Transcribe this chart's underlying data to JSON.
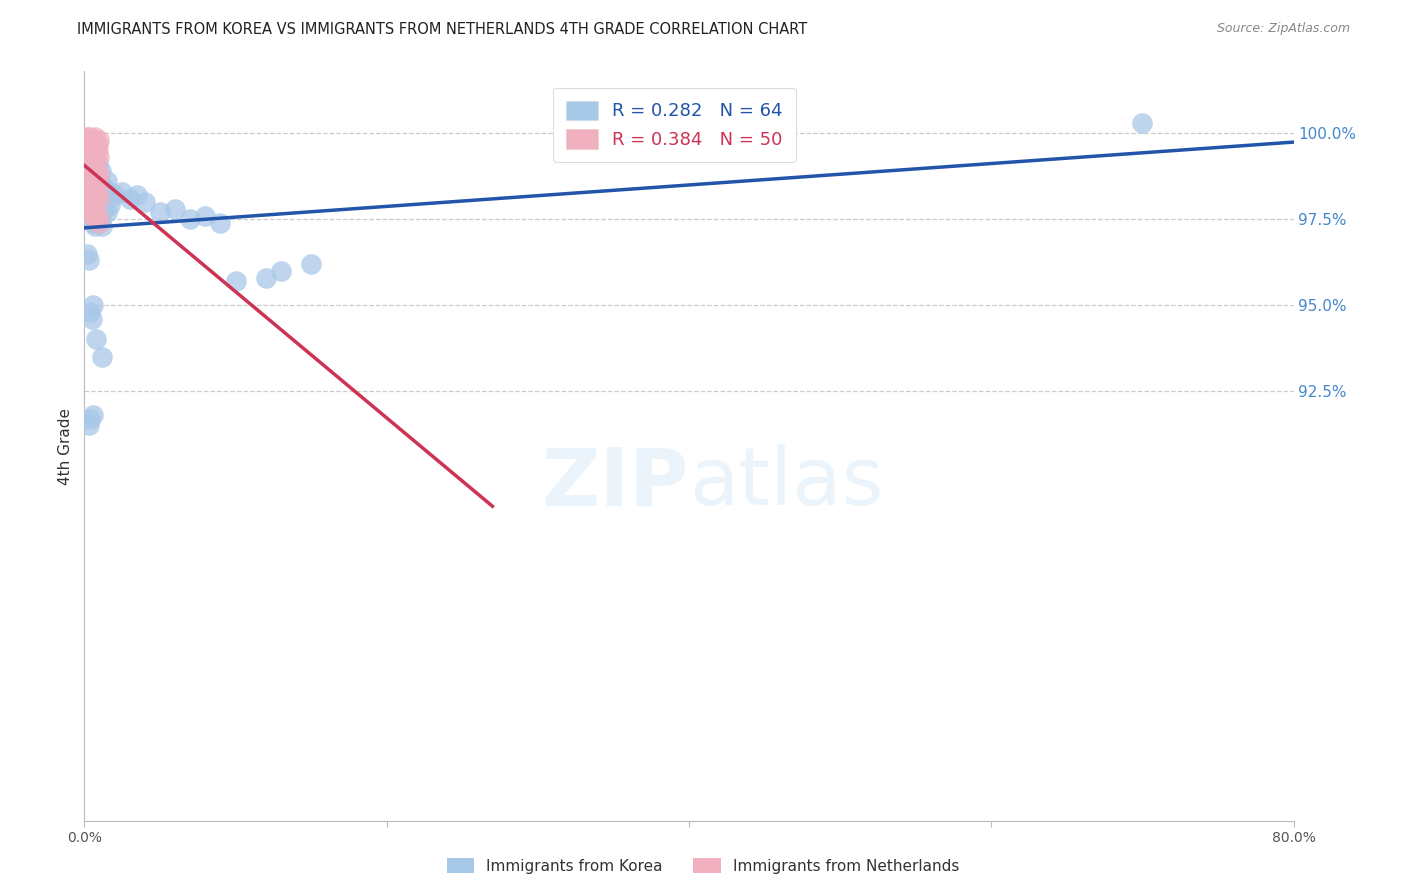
{
  "title": "IMMIGRANTS FROM KOREA VS IMMIGRANTS FROM NETHERLANDS 4TH GRADE CORRELATION CHART",
  "source": "Source: ZipAtlas.com",
  "ylabel": "4th Grade",
  "xlim": [
    0.0,
    0.8
  ],
  "ylim": [
    80.0,
    101.8
  ],
  "ytick_vals": [
    92.5,
    95.0,
    97.5,
    100.0
  ],
  "ytick_labels": [
    "92.5%",
    "95.0%",
    "97.5%",
    "100.0%"
  ],
  "korea_R": 0.282,
  "korea_N": 64,
  "netherlands_R": 0.384,
  "netherlands_N": 50,
  "korea_color": "#a8c8e8",
  "netherlands_color": "#f0b0c0",
  "korea_line_color": "#2255aa",
  "netherlands_line_color": "#cc3355",
  "grid_color": "#cccccc",
  "watermark_color": "#ddeeff",
  "korea_x": [
    0.002,
    0.003,
    0.004,
    0.005,
    0.006,
    0.007,
    0.008,
    0.009,
    0.01,
    0.011,
    0.012,
    0.013,
    0.015,
    0.017,
    0.002,
    0.003,
    0.004,
    0.005,
    0.006,
    0.007,
    0.008,
    0.009,
    0.01,
    0.011,
    0.012,
    0.013,
    0.015,
    0.017,
    0.002,
    0.003,
    0.004,
    0.005,
    0.006,
    0.007,
    0.008,
    0.009,
    0.01,
    0.011,
    0.012,
    0.02,
    0.025,
    0.03,
    0.035,
    0.04,
    0.05,
    0.06,
    0.07,
    0.08,
    0.09,
    0.1,
    0.12,
    0.13,
    0.15,
    0.002,
    0.003,
    0.004,
    0.005,
    0.006,
    0.7,
    0.003,
    0.004,
    0.006,
    0.008,
    0.012
  ],
  "korea_y": [
    99.0,
    99.1,
    99.2,
    98.8,
    99.0,
    98.9,
    99.0,
    99.1,
    98.7,
    98.9,
    98.5,
    98.4,
    98.6,
    98.3,
    98.2,
    98.3,
    98.1,
    98.0,
    98.2,
    98.1,
    98.0,
    97.9,
    97.8,
    98.0,
    97.9,
    97.8,
    97.7,
    97.9,
    97.6,
    97.5,
    97.7,
    97.6,
    97.4,
    97.3,
    97.5,
    97.4,
    97.6,
    97.5,
    97.3,
    98.2,
    98.3,
    98.1,
    98.2,
    98.0,
    97.7,
    97.8,
    97.5,
    97.6,
    97.4,
    95.7,
    95.8,
    96.0,
    96.2,
    96.5,
    96.3,
    94.8,
    94.6,
    95.0,
    100.3,
    91.5,
    91.7,
    91.8,
    94.0,
    93.5
  ],
  "netherlands_x": [
    0.001,
    0.002,
    0.003,
    0.004,
    0.005,
    0.006,
    0.007,
    0.008,
    0.009,
    0.01,
    0.001,
    0.002,
    0.003,
    0.004,
    0.005,
    0.006,
    0.007,
    0.008,
    0.009,
    0.01,
    0.001,
    0.002,
    0.003,
    0.004,
    0.005,
    0.006,
    0.007,
    0.008,
    0.009,
    0.01,
    0.001,
    0.002,
    0.003,
    0.004,
    0.005,
    0.006,
    0.007,
    0.008,
    0.009,
    0.01,
    0.001,
    0.002,
    0.003,
    0.004,
    0.005,
    0.006,
    0.007,
    0.008,
    0.009,
    0.01
  ],
  "netherlands_y": [
    99.8,
    99.9,
    99.9,
    99.8,
    99.7,
    99.8,
    99.9,
    99.6,
    99.7,
    99.8,
    99.5,
    99.6,
    99.7,
    99.4,
    99.5,
    99.6,
    99.3,
    99.4,
    99.5,
    99.3,
    99.1,
    99.0,
    99.2,
    99.1,
    98.9,
    99.0,
    98.8,
    98.9,
    98.7,
    98.8,
    98.5,
    98.6,
    98.7,
    98.4,
    98.5,
    98.3,
    98.4,
    98.2,
    98.3,
    98.1,
    97.9,
    97.8,
    97.9,
    97.7,
    97.8,
    97.6,
    97.7,
    97.5,
    97.6,
    97.4
  ]
}
